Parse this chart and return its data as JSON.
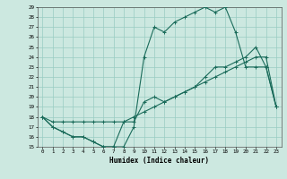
{
  "title": "",
  "xlabel": "Humidex (Indice chaleur)",
  "bg_color": "#cce8e0",
  "grid_color": "#99ccc2",
  "line_color": "#1a6b5a",
  "xlim": [
    -0.5,
    23.5
  ],
  "ylim": [
    15,
    29
  ],
  "xticks": [
    0,
    1,
    2,
    3,
    4,
    5,
    6,
    7,
    8,
    9,
    10,
    11,
    12,
    13,
    14,
    15,
    16,
    17,
    18,
    19,
    20,
    21,
    22,
    23
  ],
  "yticks": [
    15,
    16,
    17,
    18,
    19,
    20,
    21,
    22,
    23,
    24,
    25,
    26,
    27,
    28,
    29
  ],
  "line1_x": [
    0,
    1,
    2,
    3,
    4,
    5,
    6,
    7,
    8,
    9,
    10,
    11,
    12,
    13,
    14,
    15,
    16,
    17,
    18,
    19,
    20,
    21,
    22,
    23
  ],
  "line1_y": [
    18,
    17,
    16.5,
    16,
    16,
    15.5,
    15,
    15,
    17.5,
    17.5,
    19.5,
    20,
    19.5,
    20,
    20.5,
    21,
    22,
    23,
    23,
    23.5,
    24,
    25,
    23,
    19
  ],
  "line2_x": [
    0,
    1,
    2,
    3,
    4,
    5,
    6,
    7,
    8,
    9,
    10,
    11,
    12,
    13,
    14,
    15,
    16,
    17,
    18,
    19,
    20,
    21,
    22,
    23
  ],
  "line2_y": [
    18,
    17.5,
    17.5,
    17.5,
    17.5,
    17.5,
    17.5,
    17.5,
    17.5,
    18,
    18.5,
    19,
    19.5,
    20,
    20.5,
    21,
    21.5,
    22,
    22.5,
    23,
    23.5,
    24,
    24,
    19
  ],
  "line3_x": [
    0,
    1,
    2,
    3,
    4,
    5,
    6,
    7,
    8,
    9,
    10,
    11,
    12,
    13,
    14,
    15,
    16,
    17,
    18,
    19,
    20,
    21,
    22,
    23
  ],
  "line3_y": [
    18,
    17,
    16.5,
    16,
    16,
    15.5,
    15,
    15,
    15,
    17,
    24,
    27,
    26.5,
    27.5,
    28,
    28.5,
    29,
    28.5,
    29,
    26.5,
    23,
    23,
    23,
    19
  ]
}
